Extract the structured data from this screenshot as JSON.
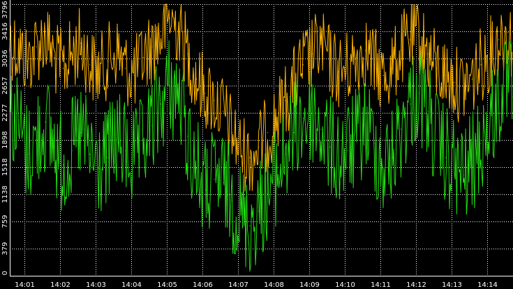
{
  "chart_data": {
    "type": "line",
    "title": "",
    "xlabel": "",
    "ylabel": "",
    "ylim": [
      0,
      3796
    ],
    "yticks": [
      0,
      379,
      759,
      1138,
      1518,
      1898,
      2277,
      2657,
      3036,
      3416,
      3796
    ],
    "ytick_labels": [
      "0",
      "379",
      "759",
      "1138",
      "1518",
      "1898",
      "2277",
      "2657",
      "3036",
      "3416",
      "3796"
    ],
    "xticks": [
      "14:01",
      "14:02",
      "14:03",
      "14:04",
      "14:05",
      "14:06",
      "14:07",
      "14:08",
      "14:09",
      "14:10",
      "14:11",
      "14:12",
      "14:13",
      "14:14"
    ],
    "xlim": [
      "14:00:35",
      "14:14:44"
    ],
    "grid": true,
    "background": "#000000",
    "series": [
      {
        "color": "#ffb400",
        "x": [
          "14:00:35",
          "14:00:50",
          "14:01:05",
          "14:01:20",
          "14:01:35",
          "14:01:50",
          "14:02:05",
          "14:02:20",
          "14:02:35",
          "14:02:50",
          "14:03:05",
          "14:03:20",
          "14:03:35",
          "14:03:50",
          "14:04:05",
          "14:04:20",
          "14:04:35",
          "14:04:50",
          "14:05:05",
          "14:05:20",
          "14:05:35",
          "14:05:50",
          "14:06:05",
          "14:06:20",
          "14:06:35",
          "14:06:50",
          "14:07:05",
          "14:07:20",
          "14:07:35",
          "14:07:50",
          "14:08:05",
          "14:08:20",
          "14:08:35",
          "14:08:50",
          "14:09:05",
          "14:09:20",
          "14:09:35",
          "14:09:50",
          "14:10:05",
          "14:10:20",
          "14:10:35",
          "14:10:50",
          "14:11:05",
          "14:11:20",
          "14:11:35",
          "14:11:50",
          "14:12:05",
          "14:12:20",
          "14:12:35",
          "14:12:50",
          "14:13:05",
          "14:13:20",
          "14:13:35",
          "14:13:50",
          "14:14:05",
          "14:14:20",
          "14:14:35",
          "14:14:44"
        ],
        "values": [
          3300,
          3150,
          3000,
          3200,
          3350,
          3050,
          2900,
          3100,
          3250,
          2950,
          2850,
          3000,
          3150,
          2900,
          2800,
          3050,
          3200,
          3350,
          3600,
          3450,
          3100,
          2750,
          2550,
          2450,
          2300,
          2000,
          1750,
          1650,
          1800,
          2000,
          2200,
          2450,
          2700,
          2950,
          3100,
          3200,
          3000,
          2850,
          2900,
          3050,
          3150,
          2950,
          2800,
          2900,
          3150,
          3300,
          3350,
          3100,
          2900,
          2800,
          2700,
          2650,
          2750,
          2950,
          3100,
          3300,
          3400,
          3250
        ]
      },
      {
        "color": "#22dd11",
        "x": [
          "14:00:35",
          "14:00:50",
          "14:01:05",
          "14:01:20",
          "14:01:35",
          "14:01:50",
          "14:02:05",
          "14:02:20",
          "14:02:35",
          "14:02:50",
          "14:03:05",
          "14:03:20",
          "14:03:35",
          "14:03:50",
          "14:04:05",
          "14:04:20",
          "14:04:35",
          "14:04:50",
          "14:05:05",
          "14:05:20",
          "14:05:35",
          "14:05:50",
          "14:06:05",
          "14:06:20",
          "14:06:35",
          "14:06:50",
          "14:07:05",
          "14:07:20",
          "14:07:35",
          "14:07:50",
          "14:08:05",
          "14:08:20",
          "14:08:35",
          "14:08:50",
          "14:09:05",
          "14:09:20",
          "14:09:35",
          "14:09:50",
          "14:10:05",
          "14:10:20",
          "14:10:35",
          "14:10:50",
          "14:11:05",
          "14:11:20",
          "14:11:35",
          "14:11:50",
          "14:12:05",
          "14:12:20",
          "14:12:35",
          "14:12:50",
          "14:13:05",
          "14:13:20",
          "14:13:35",
          "14:13:50",
          "14:14:05",
          "14:14:20",
          "14:14:35",
          "14:14:44"
        ],
        "values": [
          2300,
          2100,
          1700,
          1900,
          2150,
          1800,
          1550,
          1750,
          2000,
          1700,
          1500,
          1650,
          1900,
          1750,
          1600,
          1800,
          2100,
          2400,
          2650,
          2500,
          1950,
          1500,
          1200,
          1350,
          1300,
          1050,
          850,
          700,
          900,
          1150,
          1400,
          1700,
          2000,
          2200,
          2250,
          2050,
          1800,
          1650,
          1750,
          1900,
          2100,
          1850,
          1500,
          1650,
          2050,
          2400,
          2550,
          2300,
          1900,
          1650,
          1500,
          1400,
          1550,
          1850,
          2100,
          2450,
          2650,
          2500
        ]
      }
    ]
  }
}
